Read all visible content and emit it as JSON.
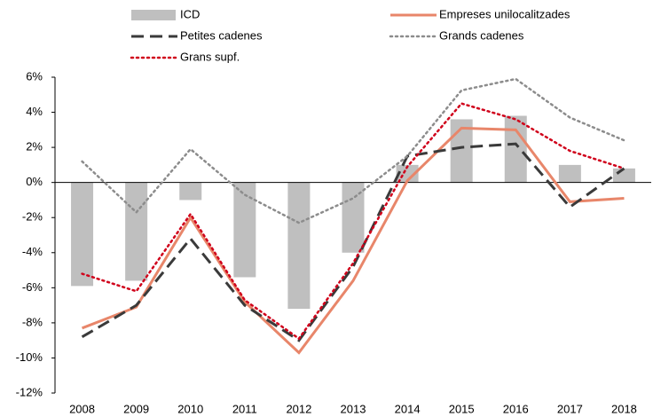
{
  "chart_data": {
    "type": "combo",
    "categories": [
      "2008",
      "2009",
      "2010",
      "2011",
      "2012",
      "2013",
      "2014",
      "2015",
      "2016",
      "2017",
      "2018"
    ],
    "series": [
      {
        "name": "ICD",
        "kind": "bar",
        "color": "#bfbfbf",
        "values": [
          -5.9,
          -5.6,
          -1.0,
          -5.4,
          -7.2,
          -4.0,
          1.0,
          3.6,
          3.8,
          1.0,
          0.8
        ]
      },
      {
        "name": "Empreses unilocalitzades",
        "kind": "line",
        "dash": "solid",
        "color": "#e8866a",
        "values": [
          -8.3,
          -7.1,
          -2.0,
          -6.8,
          -9.7,
          -5.6,
          0.1,
          3.1,
          3.0,
          -1.1,
          -0.9
        ]
      },
      {
        "name": "Petites cadenes",
        "kind": "line",
        "dash": "dashed",
        "color": "#3a3a3a",
        "values": [
          -8.8,
          -7.0,
          -3.2,
          -7.0,
          -9.0,
          -4.8,
          1.5,
          2.0,
          2.2,
          -1.4,
          0.8
        ]
      },
      {
        "name": "Grands cadenes",
        "kind": "line",
        "dash": "dotted",
        "color": "#8c8c8c",
        "values": [
          1.2,
          -1.7,
          1.9,
          -0.7,
          -2.3,
          -0.9,
          1.5,
          5.25,
          5.9,
          3.7,
          2.4
        ]
      },
      {
        "name": "Grans supf.",
        "kind": "line",
        "dash": "dotted",
        "color": "#d0021b",
        "values": [
          -5.2,
          -6.2,
          -1.8,
          -6.7,
          -8.9,
          -4.6,
          0.9,
          4.5,
          3.6,
          1.8,
          0.8
        ]
      }
    ],
    "ylim": [
      -12,
      6
    ],
    "yticks": [
      {
        "value": -12,
        "label": "-12%"
      },
      {
        "value": -10,
        "label": "-10%"
      },
      {
        "value": -8,
        "label": "-8%"
      },
      {
        "value": -6,
        "label": "-6%"
      },
      {
        "value": -4,
        "label": "-4%"
      },
      {
        "value": -2,
        "label": "-2%"
      },
      {
        "value": 0,
        "label": "0%"
      },
      {
        "value": 2,
        "label": "2%"
      },
      {
        "value": 4,
        "label": "4%"
      },
      {
        "value": 6,
        "label": "6%"
      }
    ]
  }
}
